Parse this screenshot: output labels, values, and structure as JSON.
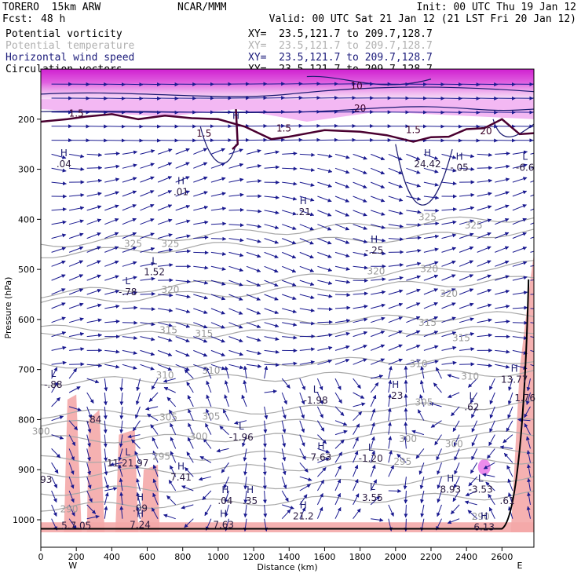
{
  "header": {
    "model": "TORERO  15km ARW",
    "fcst_label": "Fcst:",
    "fcst_value": "48 h",
    "center": "NCAR/MMM",
    "init": "Init: 00 UTC Thu 19 Jan 12",
    "valid": "Valid: 00 UTC Sat 21 Jan 12 (21 LST Fri 20 Jan 12)",
    "fields": [
      {
        "name": "Potential vorticity",
        "xy": "XY=  23.5,121.7 to 209.7,128.7",
        "color": "#000000"
      },
      {
        "name": "Potential temperature",
        "xy": "XY=  23.5,121.7 to 209.7,128.7",
        "color": "#b0b0b0"
      },
      {
        "name": "Horizontal wind speed",
        "xy": "XY=  23.5,121.7 to 209.7,128.7",
        "color": "#1a1a7a"
      },
      {
        "name": "Circulation vectors",
        "xy": "XY=  23.5,121.7 to 209.7,128.7",
        "color": "#000000"
      }
    ]
  },
  "colors": {
    "theta": "#a8a8a8",
    "pv_thick": "#4a0030",
    "speed": "#1a1a70",
    "vectors": "#1a1a90",
    "magenta": "#e040e0",
    "pink": "#f4a8a8"
  },
  "chart_data": {
    "type": "cross-section",
    "xlabel": "Distance (km)",
    "ylabel": "Pressure (hPa)",
    "xlim": [
      0,
      2780
    ],
    "ylim": [
      1025,
      100
    ],
    "x_ticks": [
      0,
      200,
      400,
      600,
      800,
      1000,
      1200,
      1400,
      1600,
      1800,
      2000,
      2200,
      2400,
      2600
    ],
    "y_ticks": [
      200,
      300,
      400,
      500,
      600,
      700,
      800,
      900,
      1000
    ],
    "x_ends": [
      "W",
      "E"
    ],
    "theta_labels": [
      {
        "x": 520,
        "p": 455,
        "t": "325"
      },
      {
        "x": 730,
        "p": 455,
        "t": "325"
      },
      {
        "x": 2180,
        "p": 402,
        "t": "325"
      },
      {
        "x": 2440,
        "p": 418,
        "t": "325"
      },
      {
        "x": 730,
        "p": 547,
        "t": "320"
      },
      {
        "x": 1890,
        "p": 510,
        "t": "320"
      },
      {
        "x": 2190,
        "p": 505,
        "t": "320"
      },
      {
        "x": 2300,
        "p": 555,
        "t": "320"
      },
      {
        "x": 720,
        "p": 628,
        "t": "315"
      },
      {
        "x": 920,
        "p": 635,
        "t": "315"
      },
      {
        "x": 2180,
        "p": 613,
        "t": "315"
      },
      {
        "x": 2370,
        "p": 643,
        "t": "315"
      },
      {
        "x": 700,
        "p": 718,
        "t": "310"
      },
      {
        "x": 960,
        "p": 708,
        "t": "310"
      },
      {
        "x": 2130,
        "p": 695,
        "t": "310"
      },
      {
        "x": 2420,
        "p": 720,
        "t": "310"
      },
      {
        "x": 720,
        "p": 802,
        "t": "305"
      },
      {
        "x": 960,
        "p": 800,
        "t": "305"
      },
      {
        "x": 2160,
        "p": 772,
        "t": "305"
      },
      {
        "x": 1,
        "p": 830,
        "t": "300"
      },
      {
        "x": 890,
        "p": 840,
        "t": "300"
      },
      {
        "x": 2070,
        "p": 845,
        "t": "300"
      },
      {
        "x": 2330,
        "p": 855,
        "t": "300"
      },
      {
        "x": 680,
        "p": 880,
        "t": "295"
      },
      {
        "x": 2040,
        "p": 890,
        "t": "295"
      },
      {
        "x": 160,
        "p": 985,
        "t": "290"
      },
      {
        "x": 2480,
        "p": 1000,
        "t": "290"
      }
    ],
    "pv_labels": [
      {
        "x": 200,
        "p": 195,
        "t": "1.5"
      },
      {
        "x": 920,
        "p": 235,
        "t": "1.5"
      },
      {
        "x": 1370,
        "p": 225,
        "t": "1.5"
      },
      {
        "x": 2100,
        "p": 228,
        "t": "1.5"
      },
      {
        "x": 1780,
        "p": 140,
        "t": "10"
      },
      {
        "x": 1800,
        "p": 185,
        "t": "20"
      },
      {
        "x": 2510,
        "p": 230,
        "t": "20"
      }
    ],
    "extrema": [
      {
        "x": 130,
        "p": 290,
        "m": "H",
        "v": ".04"
      },
      {
        "x": 790,
        "p": 345,
        "m": "H",
        "v": ".01"
      },
      {
        "x": 1100,
        "p": 215,
        "m": "H",
        "v": ""
      },
      {
        "x": 1480,
        "p": 385,
        "m": "H",
        "v": ".21"
      },
      {
        "x": 1880,
        "p": 462,
        "m": "H",
        "v": "-.25"
      },
      {
        "x": 2180,
        "p": 290,
        "m": "H",
        "v": "24.42"
      },
      {
        "x": 2360,
        "p": 297,
        "m": "H",
        "v": "-.05"
      },
      {
        "x": 2730,
        "p": 297,
        "m": "L",
        "v": "-6.6"
      },
      {
        "x": 640,
        "p": 505,
        "m": "L",
        "v": "1.52"
      },
      {
        "x": 490,
        "p": 545,
        "m": "L",
        "v": "-.78"
      },
      {
        "x": 70,
        "p": 730,
        "m": "L",
        "v": "-.88"
      },
      {
        "x": 1550,
        "p": 762,
        "m": "L",
        "v": "-1.98"
      },
      {
        "x": 2000,
        "p": 752,
        "m": "H",
        "v": ".23"
      },
      {
        "x": 2430,
        "p": 775,
        "m": "L",
        "v": ".62"
      },
      {
        "x": 2670,
        "p": 720,
        "m": "H",
        "v": "13.77"
      },
      {
        "x": 2730,
        "p": 757,
        "m": "",
        "v": "1.76"
      },
      {
        "x": 1130,
        "p": 835,
        "m": "L",
        "v": "-1.96"
      },
      {
        "x": 1580,
        "p": 875,
        "m": "H",
        "v": "7.63"
      },
      {
        "x": 1860,
        "p": 878,
        "m": "L",
        "v": "-1.20"
      },
      {
        "x": 490,
        "p": 887,
        "m": "L",
        "v": "11.21.97"
      },
      {
        "x": 790,
        "p": 915,
        "m": "H",
        "v": "7.41"
      },
      {
        "x": 30,
        "p": 920,
        "m": "",
        "v": "93"
      },
      {
        "x": 1870,
        "p": 956,
        "m": "L",
        "v": "3.55"
      },
      {
        "x": 1040,
        "p": 962,
        "m": "H",
        "v": ".04"
      },
      {
        "x": 1180,
        "p": 962,
        "m": "H",
        "v": ".35"
      },
      {
        "x": 560,
        "p": 977,
        "m": "H",
        "v": ".09"
      },
      {
        "x": 2310,
        "p": 940,
        "m": "H",
        "v": "8.93"
      },
      {
        "x": 2480,
        "p": 940,
        "m": "L",
        "v": "-3.53"
      },
      {
        "x": 2630,
        "p": 962,
        "m": "",
        "v": ".61"
      },
      {
        "x": 1480,
        "p": 993,
        "m": "H",
        "v": "21.2"
      },
      {
        "x": 560,
        "p": 1010,
        "m": "H",
        "v": "7.24"
      },
      {
        "x": 1030,
        "p": 1010,
        "m": "H",
        "v": "7.63"
      },
      {
        "x": 2500,
        "p": 1015,
        "m": "H",
        "v": "6.13"
      },
      {
        "x": 200,
        "p": 1012,
        "m": "",
        "v": "5.7.05"
      },
      {
        "x": 300,
        "p": 800,
        "m": "",
        "v": ".84"
      }
    ]
  }
}
